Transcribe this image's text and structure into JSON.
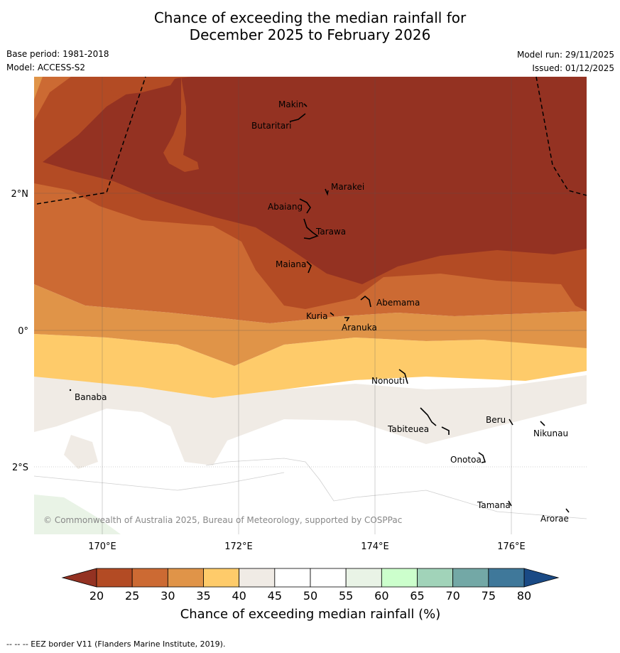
{
  "title": {
    "line1": "Chance of exceeding the median rainfall for",
    "line2": "December 2025 to February 2026"
  },
  "meta": {
    "base_period": "Base period: 1981-2018",
    "model": "Model: ACCESS-S2",
    "model_run": "Model run: 29/11/2025",
    "issued": "Issued: 01/12/2025"
  },
  "map": {
    "lat_labels": [
      "2°N",
      "0°",
      "2°S"
    ],
    "lon_labels": [
      "170°E",
      "172°E",
      "174°E",
      "176°E"
    ],
    "places": [
      {
        "name": "Makin"
      },
      {
        "name": "Butaritari"
      },
      {
        "name": "Marakei"
      },
      {
        "name": "Abaiang"
      },
      {
        "name": "Tarawa"
      },
      {
        "name": "Maiana"
      },
      {
        "name": "Abemama"
      },
      {
        "name": "Kuria"
      },
      {
        "name": "Aranuka"
      },
      {
        "name": "Nonouti"
      },
      {
        "name": "Banaba"
      },
      {
        "name": "Tabiteuea"
      },
      {
        "name": "Beru"
      },
      {
        "name": "Nikunau"
      },
      {
        "name": "Onotoa"
      },
      {
        "name": "Tamana"
      },
      {
        "name": "Arorae"
      }
    ],
    "copyright": "© Commonwealth of Australia 2025, Bureau of Meteorology, supported by COSPPac"
  },
  "colorbar": {
    "title": "Chance of exceeding median rainfall (%)",
    "ticks": [
      "20",
      "25",
      "30",
      "35",
      "40",
      "45",
      "50",
      "55",
      "60",
      "65",
      "70",
      "75",
      "80"
    ],
    "colors": [
      "#b34b24",
      "#cc6a33",
      "#e09448",
      "#fecb6a",
      "#f0ebe5",
      "#ffffff",
      "#ffffff",
      "#e9f3e6",
      "#ccffcc",
      "#a1d3b9",
      "#73a8a6",
      "#3f789a"
    ],
    "under_color": "#943222",
    "over_color": "#1a4a85"
  },
  "footer": "--  --  -- EEZ border V11 (Flanders Marine Institute, 2019)."
}
